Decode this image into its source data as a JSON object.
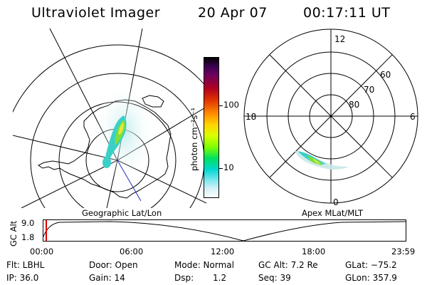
{
  "header": {
    "title": "Ultraviolet Imager",
    "date": "20 Apr 07",
    "time": "00:17:11 UT"
  },
  "colorbar": {
    "unit_label": "photon cm⁻²s⁻¹",
    "ticks": [
      {
        "value": 100,
        "label": "100"
      },
      {
        "value": 10,
        "label": "10"
      }
    ],
    "scale": "log"
  },
  "left_panel": {
    "caption": "Geographic Lat/Lon"
  },
  "right_panel": {
    "caption": "Apex MLat/MLT",
    "hour_labels": [
      {
        "name": "mlt-12",
        "text": "12"
      },
      {
        "name": "mlt-18",
        "text": "18"
      },
      {
        "name": "mlt-6",
        "text": "6"
      },
      {
        "name": "mlt-0",
        "text": "0"
      }
    ],
    "lat_labels": [
      {
        "name": "mlat-60",
        "text": "60"
      },
      {
        "name": "mlat-70",
        "text": "70"
      },
      {
        "name": "mlat-80",
        "text": "80"
      }
    ]
  },
  "timeline": {
    "ylabel": "GC Alt",
    "y_ticks": [
      "9.0",
      "1.8"
    ],
    "x_ticks": [
      "00:00",
      "06:00",
      "12:00",
      "18:00",
      "23:59"
    ],
    "marker_time": "00:17"
  },
  "footer": {
    "flt": "Flt: LBHL",
    "ip": "IP: 36.0",
    "door": "Door: Open",
    "gain": "Gain: 14",
    "mode": "Mode: Normal",
    "dsp_label": "Dsp:",
    "dsp_value": "1.2",
    "gcalt": "GC Alt: 7.2 Re",
    "seq": "Seq: 39",
    "glat": "GLat: −75.2",
    "glon": "GLon: 357.9"
  },
  "colors": {
    "aurora_cyan": "#3ad0c8",
    "aurora_green": "#7de03a",
    "aurora_yellow": "#e8e83a",
    "marker_red": "#e00000",
    "track_blue": "#2030c0"
  }
}
